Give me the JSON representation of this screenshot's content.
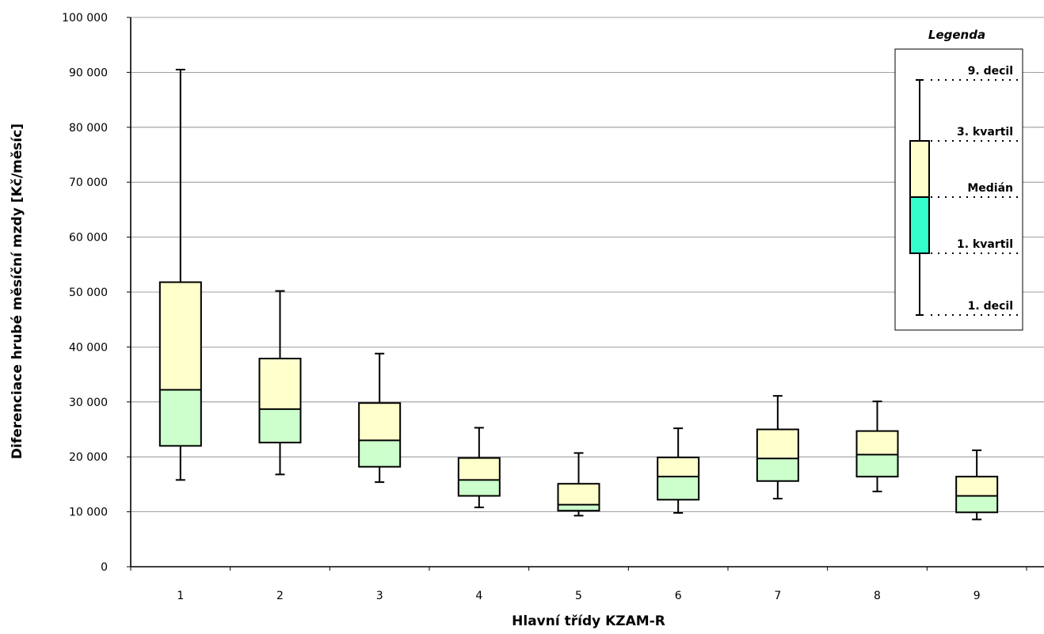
{
  "chart_data": {
    "type": "box",
    "xlabel": "Hlavní třídy KZAM-R",
    "ylabel": "Diferenciace hrubé měsíční mzdy [Kč/měsíc]",
    "ylim": [
      0,
      100000
    ],
    "y_ticks": [
      "0",
      "10 000",
      "20 000",
      "30 000",
      "40 000",
      "50 000",
      "60 000",
      "70 000",
      "80 000",
      "90 000",
      "100 000"
    ],
    "y_tick_values": [
      0,
      10000,
      20000,
      30000,
      40000,
      50000,
      60000,
      70000,
      80000,
      90000,
      100000
    ],
    "grid": true,
    "categories": [
      "1",
      "2",
      "3",
      "4",
      "5",
      "6",
      "7",
      "8",
      "9"
    ],
    "boxes": [
      {
        "d1": 15800,
        "q1": 22000,
        "median": 32200,
        "q3": 51800,
        "d9": 90500
      },
      {
        "d1": 16800,
        "q1": 22600,
        "median": 28700,
        "q3": 37900,
        "d9": 50200
      },
      {
        "d1": 15400,
        "q1": 18200,
        "median": 23000,
        "q3": 29800,
        "d9": 38800
      },
      {
        "d1": 10800,
        "q1": 12900,
        "median": 15800,
        "q3": 19800,
        "d9": 25300
      },
      {
        "d1": 9300,
        "q1": 10200,
        "median": 11300,
        "q3": 15100,
        "d9": 20700
      },
      {
        "d1": 9800,
        "q1": 12200,
        "median": 16400,
        "q3": 19900,
        "d9": 25200
      },
      {
        "d1": 12400,
        "q1": 15600,
        "median": 19700,
        "q3": 25000,
        "d9": 31100
      },
      {
        "d1": 13700,
        "q1": 16400,
        "median": 20400,
        "q3": 24700,
        "d9": 30100
      },
      {
        "d1": 8600,
        "q1": 9900,
        "median": 12900,
        "q3": 16400,
        "d9": 21200
      }
    ],
    "colors": {
      "upper_box": "#ffffcc",
      "lower_box": "#ccffcc",
      "legend_lower_box": "#33ffcc",
      "grid": "#808080",
      "stroke": "#000000"
    },
    "legend": {
      "title": "Legenda",
      "placement": "top-right",
      "labels": {
        "d9": "9. decil",
        "q3": "3. kvartil",
        "median": "Medián",
        "q1": "1. kvartil",
        "d1": "1. decil"
      }
    }
  }
}
